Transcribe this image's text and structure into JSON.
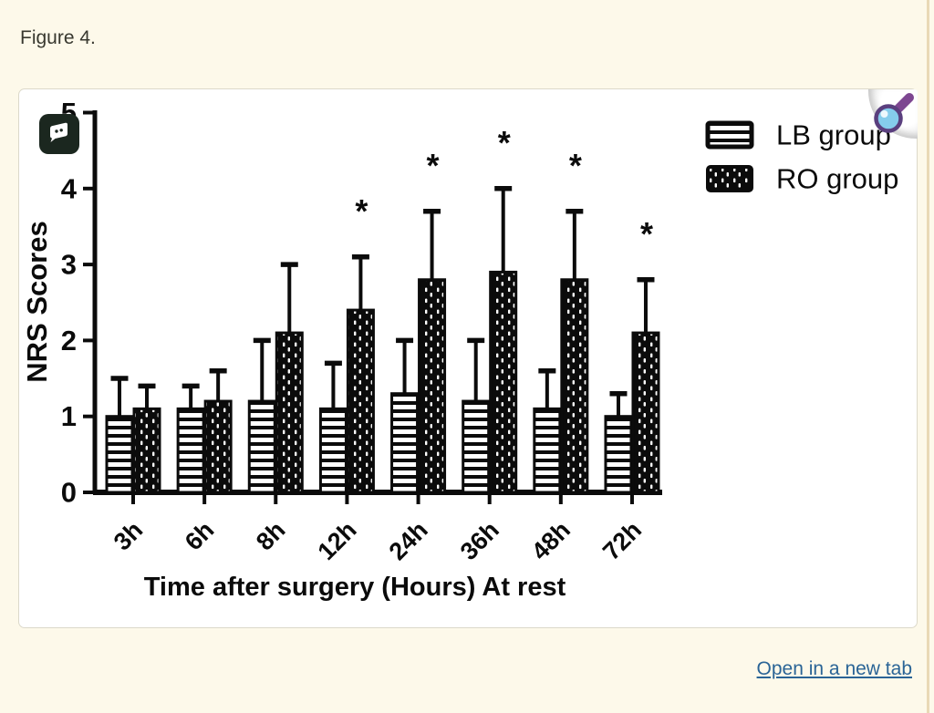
{
  "page": {
    "figure_label": "Figure 4.",
    "open_link": "Open in a new tab",
    "colors": {
      "page_background": "#fdf9ea",
      "card_background": "#ffffff",
      "card_border": "#dcd9ca",
      "link_blue": "#2a6496",
      "divider_tan": "#e9d9b6",
      "chart_ink": "#0b0b0b",
      "comment_icon_bg": "#1b271f",
      "magnifier_lens_blue": "#85cdec",
      "magnifier_handle_purple": "#7d4691"
    },
    "icons": {
      "comment": "comment-icon",
      "magnifier": "magnifier-icon"
    }
  },
  "chart_data": {
    "type": "bar",
    "title": "",
    "xlabel": "Time after surgery (Hours) At rest",
    "ylabel": "NRS Scores",
    "ylim": [
      0,
      5
    ],
    "yticks": [
      0,
      1,
      2,
      3,
      4,
      5
    ],
    "categories": [
      "3h",
      "6h",
      "8h",
      "12h",
      "24h",
      "36h",
      "48h",
      "72h"
    ],
    "series": [
      {
        "name": "LB group",
        "pattern": "horizontal-stripes",
        "values": [
          1.0,
          1.1,
          1.2,
          1.1,
          1.3,
          1.2,
          1.1,
          1.0
        ],
        "error_top": [
          1.5,
          1.4,
          2.0,
          1.7,
          2.0,
          2.0,
          1.6,
          1.3
        ]
      },
      {
        "name": "RO group",
        "pattern": "black-dotted",
        "values": [
          1.1,
          1.2,
          2.1,
          2.4,
          2.8,
          2.9,
          2.8,
          2.1
        ],
        "error_top": [
          1.4,
          1.6,
          3.0,
          3.1,
          3.7,
          4.0,
          3.7,
          2.8
        ]
      }
    ],
    "error_bar_style": "upper-whisker-with-cap",
    "significance_marker": "*",
    "significant_categories": [
      "12h",
      "24h",
      "36h",
      "48h",
      "72h"
    ],
    "significant_series": "RO group",
    "legend_position": "top-right",
    "grid": false
  }
}
